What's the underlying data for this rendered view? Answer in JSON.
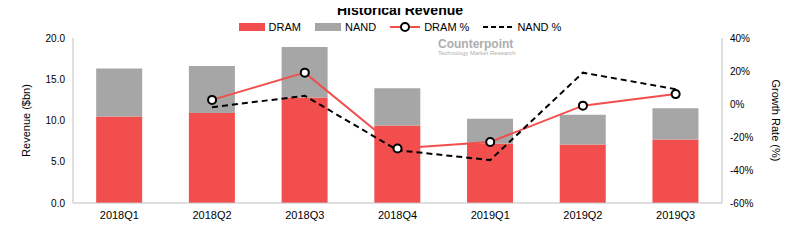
{
  "chart_data": {
    "type": "bar",
    "title": "Historical Revenue",
    "stacked": true,
    "grid": false,
    "legend": "top",
    "annotations": [
      "Counterpoint",
      "Technology Market Research"
    ],
    "x_label": null,
    "y_label": "Revenue ($bn)",
    "y2_label": "Growth Rate (%)",
    "categories": [
      "2018Q1",
      "2018Q2",
      "2018Q3",
      "2018Q4",
      "2019Q1",
      "2019Q2",
      "2019Q3"
    ],
    "ylim": [
      0,
      20
    ],
    "yticks": [
      {
        "value": 0,
        "label": "0.0"
      },
      {
        "value": 5,
        "label": "5.0"
      },
      {
        "value": 10,
        "label": "10.0"
      },
      {
        "value": 15,
        "label": "15.0"
      },
      {
        "value": 20,
        "label": "20.0"
      }
    ],
    "y2lim": [
      -60,
      40
    ],
    "y2ticks": [
      {
        "value": -60,
        "label": "-60%"
      },
      {
        "value": -40,
        "label": "-40%"
      },
      {
        "value": -20,
        "label": "-20%"
      },
      {
        "value": 0,
        "label": "0%"
      },
      {
        "value": 20,
        "label": "20%"
      },
      {
        "value": 40,
        "label": "40%"
      }
    ],
    "series": [
      {
        "name": "DRAM",
        "type": "bar",
        "color": "#f24e4e",
        "values": [
          10.5,
          10.9,
          12.8,
          9.4,
          7.2,
          7.1,
          7.7
        ]
      },
      {
        "name": "NAND",
        "type": "bar",
        "color": "#a6a6a6",
        "values": [
          5.8,
          5.7,
          6.1,
          4.5,
          3.0,
          3.6,
          3.8
        ]
      },
      {
        "name": "DRAM %",
        "type": "line",
        "axis": "y2",
        "color": "#f24e4e",
        "marker": "circle",
        "line_style": "solid",
        "values": [
          null,
          2.5,
          19,
          -27,
          -23,
          -1,
          6
        ]
      },
      {
        "name": "NAND %",
        "type": "line",
        "axis": "y2",
        "color": "#000000",
        "marker": "none",
        "line_style": "dashed",
        "values": [
          null,
          -2,
          5,
          -28,
          -34,
          19,
          9
        ]
      }
    ]
  }
}
